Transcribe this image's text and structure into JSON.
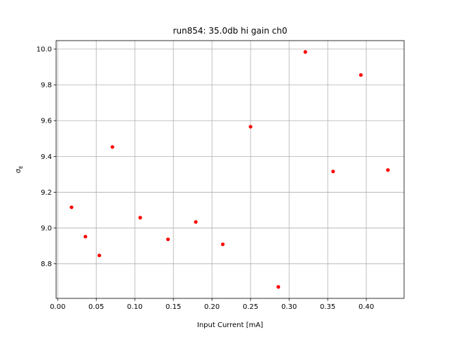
{
  "chart_data": {
    "type": "scatter",
    "title": "run854: 35.0db hi gain ch0",
    "xlabel": "Input Current [mA]",
    "ylabel": {
      "text": "σ",
      "subscript": "E"
    },
    "x": [
      0.018,
      0.036,
      0.054,
      0.071,
      0.107,
      0.143,
      0.179,
      0.214,
      0.25,
      0.286,
      0.321,
      0.357,
      0.393,
      0.428
    ],
    "series": [
      {
        "color": "#ff0000",
        "values": [
          9.116,
          8.952,
          8.847,
          9.453,
          9.058,
          8.937,
          9.034,
          8.909,
          9.566,
          8.671,
          9.984,
          9.316,
          9.855,
          9.324
        ]
      }
    ],
    "xlim": [
      -0.002,
      0.449
    ],
    "ylim": [
      8.607,
      10.047
    ],
    "xticks": [
      {
        "value": 0,
        "label": "0.00"
      },
      {
        "value": 0.05,
        "label": "0.05"
      },
      {
        "value": 0.1,
        "label": "0.10"
      },
      {
        "value": 0.15,
        "label": "0.15"
      },
      {
        "value": 0.2,
        "label": "0.20"
      },
      {
        "value": 0.25,
        "label": "0.25"
      },
      {
        "value": 0.3,
        "label": "0.30"
      },
      {
        "value": 0.35,
        "label": "0.35"
      },
      {
        "value": 0.4,
        "label": "0.40"
      }
    ],
    "yticks": [
      {
        "value": 8.8,
        "label": "8.8"
      },
      {
        "value": 9.0,
        "label": "9.0"
      },
      {
        "value": 9.2,
        "label": "9.2"
      },
      {
        "value": 9.4,
        "label": "9.4"
      },
      {
        "value": 9.6,
        "label": "9.6"
      },
      {
        "value": 9.8,
        "label": "9.8"
      },
      {
        "value": 10.0,
        "label": "10.0"
      }
    ],
    "grid": true
  }
}
